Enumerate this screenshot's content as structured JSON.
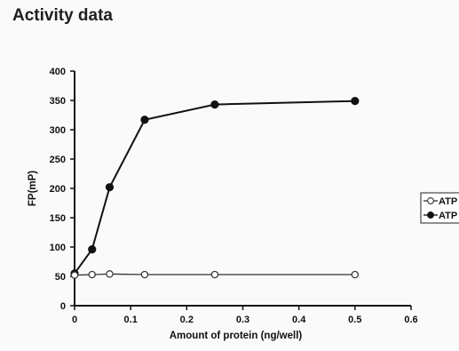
{
  "page": {
    "heading": "Activity data"
  },
  "chart_data": {
    "type": "line",
    "title": "",
    "xlabel": "Amount of protein (ng/well)",
    "ylabel": "FP(mP)",
    "xlim": [
      0,
      0.6
    ],
    "ylim": [
      0,
      400
    ],
    "xticks": [
      0,
      0.1,
      0.2,
      0.3,
      0.4,
      0.5,
      0.6
    ],
    "xtick_labels": [
      "0",
      "0.1",
      "0.2",
      "0.3",
      "0.4",
      "0.5",
      "0.6"
    ],
    "yticks": [
      0,
      50,
      100,
      150,
      200,
      250,
      300,
      350,
      400
    ],
    "ytick_labels": [
      "0",
      "50",
      "100",
      "150",
      "200",
      "250",
      "300",
      "350",
      "400"
    ],
    "grid": false,
    "legend_position": "right",
    "x": [
      0,
      0.03125,
      0.0625,
      0.125,
      0.25,
      0.5
    ],
    "series": [
      {
        "name": "ATP",
        "marker": "open-circle",
        "color": "#333333",
        "values": [
          52,
          53,
          54,
          53,
          53,
          53
        ]
      },
      {
        "name": "ATP",
        "marker": "filled-circle",
        "color": "#111111",
        "values": [
          55,
          96,
          202,
          317,
          343,
          349
        ]
      }
    ]
  }
}
